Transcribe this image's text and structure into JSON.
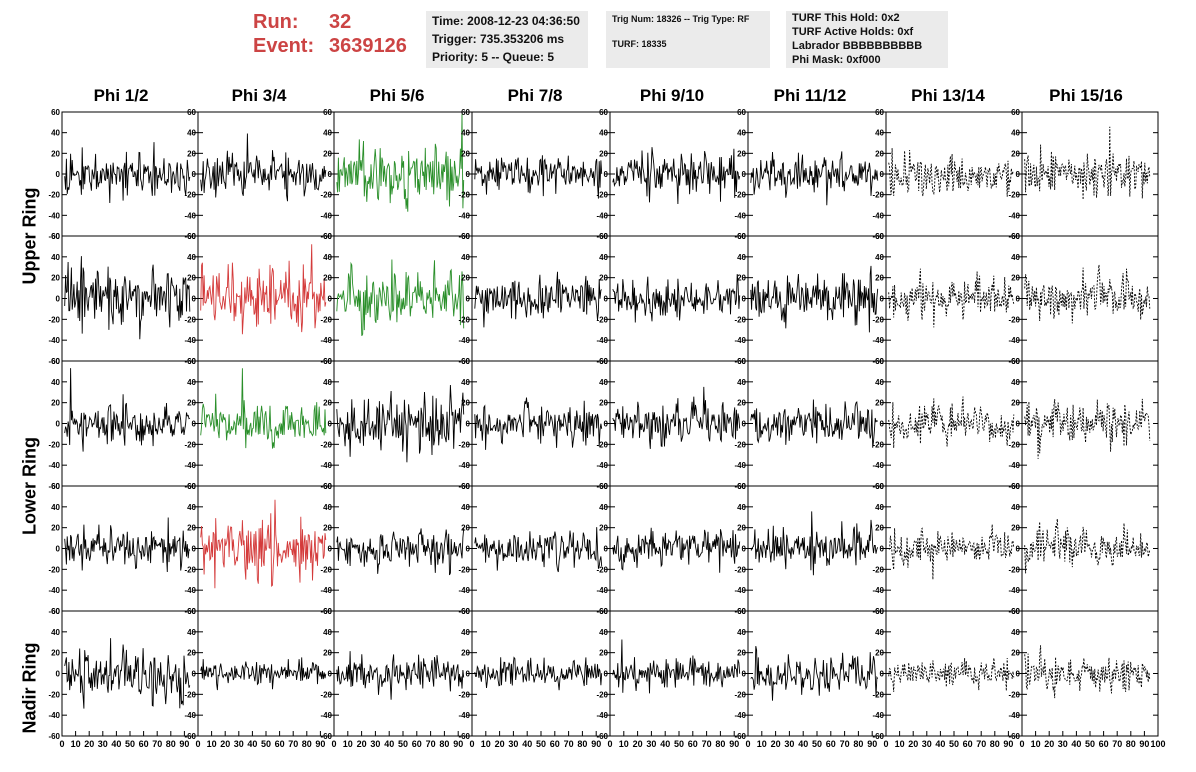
{
  "header": {
    "run_label": "Run:",
    "run_value": "32",
    "event_label": "Event:",
    "event_value": "3639126"
  },
  "info1": {
    "time": "Time: 2008-12-23 04:36:50",
    "trigger": "Trigger: 735.353206 ms",
    "priority": "Priority: 5 -- Queue: 5"
  },
  "info2": {
    "trig": "Trig Num: 18326 -- Trig Type: RF",
    "turf": "TURF: 18335"
  },
  "info3": {
    "hold": "TURF This Hold: 0x2",
    "active": "TURF Active Holds: 0xf",
    "labrador": "Labrador BBBBBBBBBB",
    "phimask": "Phi Mask: 0xf000"
  },
  "columns": [
    "Phi 1/2",
    "Phi 3/4",
    "Phi 5/6",
    "Phi 7/8",
    "Phi 9/10",
    "Phi 11/12",
    "Phi 13/14",
    "Phi 15/16"
  ],
  "ring_labels": [
    "Upper Ring",
    "Lower Ring",
    "Nadir Ring"
  ],
  "colors": {
    "black": "#000000",
    "green": "#2a8f2a",
    "red": "#d43b3b",
    "header_red": "#cc4444",
    "panel_bg": "#ebebeb"
  },
  "chart_data": {
    "type": "line",
    "xlim": [
      0,
      100
    ],
    "ylim": [
      -60,
      60
    ],
    "x_ticks": [
      0,
      10,
      20,
      30,
      40,
      50,
      60,
      70,
      80,
      90,
      100
    ],
    "y_ticks": [
      -60,
      -40,
      -20,
      0,
      20,
      40,
      60
    ],
    "x_tick_labels": [
      "0",
      "10",
      "20",
      "30",
      "40",
      "50",
      "60",
      "70",
      "80",
      "90",
      "100"
    ],
    "y_tick_labels": [
      "-60",
      "-40",
      "-20",
      "0",
      "20",
      "40",
      "60"
    ],
    "rows": 5,
    "cols": 8,
    "trace_colors": [
      [
        "black",
        "black",
        "green",
        "black",
        "black",
        "black",
        "dotted",
        "dotted"
      ],
      [
        "black",
        "red",
        "green",
        "black",
        "black",
        "black",
        "dotted",
        "dotted"
      ],
      [
        "black",
        "green",
        "black",
        "black",
        "black",
        "black",
        "dotted",
        "dotted"
      ],
      [
        "black",
        "red",
        "black",
        "black",
        "black",
        "black",
        "dotted",
        "dotted"
      ],
      [
        "black",
        "black",
        "black",
        "black",
        "black",
        "black",
        "dotted",
        "dotted"
      ]
    ],
    "amplitude_approx": [
      [
        22,
        22,
        28,
        18,
        22,
        18,
        22,
        25
      ],
      [
        28,
        30,
        30,
        22,
        20,
        25,
        18,
        22
      ],
      [
        22,
        22,
        30,
        22,
        20,
        20,
        22,
        22
      ],
      [
        22,
        30,
        18,
        20,
        18,
        22,
        18,
        20
      ],
      [
        28,
        12,
        18,
        15,
        15,
        20,
        15,
        18
      ]
    ]
  }
}
